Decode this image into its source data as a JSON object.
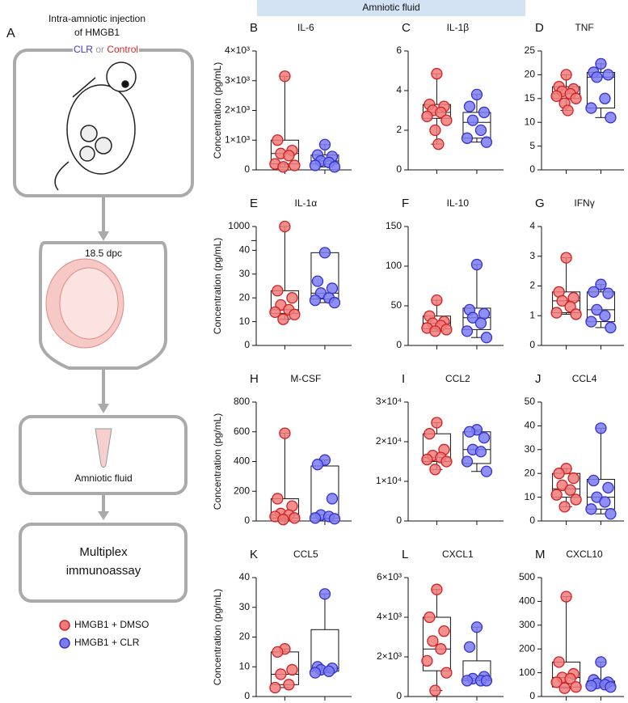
{
  "header": {
    "title": "Amniotic fluid"
  },
  "diagram": {
    "panel": "A",
    "line1": "Intra-amniotic injection",
    "line2": "of HMGB1",
    "clr": "CLR",
    "or": "or",
    "control": "Control",
    "stage": "18.5 dpc",
    "sample": "Amniotic fluid",
    "assay1": "Multiplex",
    "assay2": "immunoassay"
  },
  "legend": {
    "items": [
      {
        "name": "HMGB1 + DMSO",
        "color": "#f27b7b"
      },
      {
        "name": "HMGB1 + CLR",
        "color": "#7c7cf2"
      }
    ]
  },
  "chart_data": [
    {
      "type": "box",
      "panel": "B",
      "title": "IL-6",
      "ylabel": "Concentration (pg/mL)",
      "ylim": [
        0,
        4000
      ],
      "yticks": [
        0,
        {
          "value": 1000,
          "label": "1×10³"
        },
        {
          "value": 2000,
          "label": "2×10³"
        },
        {
          "value": 3000,
          "label": "3×10³"
        },
        {
          "value": 4000,
          "label": "4×10³"
        }
      ],
      "series": [
        {
          "color": "#f27b7b",
          "values": [
            3150,
            1000,
            650,
            550,
            480,
            200,
            150,
            100
          ],
          "box": [
            100,
            200,
            550,
            1000,
            3150
          ]
        },
        {
          "color": "#7c7cf2",
          "values": [
            850,
            500,
            450,
            300,
            250,
            150,
            100
          ],
          "box": [
            100,
            200,
            300,
            500,
            850
          ]
        }
      ]
    },
    {
      "type": "box",
      "panel": "C",
      "title": "IL-1β",
      "ylim": [
        0,
        6
      ],
      "yticks": [
        0,
        2,
        4,
        6
      ],
      "series": [
        {
          "color": "#f27b7b",
          "values": [
            4.85,
            3.3,
            3.2,
            3.0,
            2.9,
            2.7,
            2.5,
            2.0,
            1.3
          ],
          "box": [
            1.3,
            2.6,
            2.9,
            3.3,
            4.85
          ]
        },
        {
          "color": "#7c7cf2",
          "values": [
            3.8,
            3.2,
            2.9,
            2.5,
            2.0,
            1.6,
            1.4
          ],
          "box": [
            1.4,
            1.6,
            2.4,
            2.9,
            3.8
          ]
        }
      ]
    },
    {
      "type": "box",
      "panel": "D",
      "title": "TNF",
      "ylim": [
        0,
        25
      ],
      "yticks": [
        0,
        5,
        10,
        15,
        20,
        25
      ],
      "series": [
        {
          "color": "#f27b7b",
          "values": [
            20,
            17.5,
            17,
            16.5,
            16,
            15.5,
            15,
            14,
            12.5
          ],
          "box": [
            12.5,
            15,
            16,
            17.5,
            20
          ]
        },
        {
          "color": "#7c7cf2",
          "values": [
            22.3,
            20.5,
            20,
            19.5,
            15,
            13,
            11
          ],
          "box": [
            11,
            13,
            19.5,
            20.5,
            22.3
          ]
        }
      ]
    },
    {
      "type": "box",
      "panel": "E",
      "title": "IL-1α",
      "ylabel": "Concentration (pg/mL)",
      "ylim": [
        0,
        1000
      ],
      "ybreak": 40,
      "yticks": [
        0,
        10,
        20,
        30,
        40,
        1000
      ],
      "series": [
        {
          "color": "#f27b7b",
          "values": [
            1000,
            23,
            20,
            17,
            15,
            14,
            13,
            11
          ],
          "box": [
            11,
            13.5,
            15,
            23,
            1000
          ]
        },
        {
          "color": "#7c7cf2",
          "values": [
            39,
            27,
            24,
            22,
            20,
            19,
            18
          ],
          "box": [
            18,
            19.5,
            22,
            39,
            39
          ]
        }
      ]
    },
    {
      "type": "box",
      "panel": "F",
      "title": "IL-10",
      "ylim": [
        0,
        150
      ],
      "yticks": [
        0,
        50,
        100,
        150
      ],
      "series": [
        {
          "color": "#f27b7b",
          "values": [
            57,
            37,
            30,
            28,
            25,
            22,
            20,
            18
          ],
          "box": [
            18,
            21,
            28,
            37,
            57
          ]
        },
        {
          "color": "#7c7cf2",
          "values": [
            102,
            45,
            40,
            35,
            28,
            18,
            10
          ],
          "box": [
            10,
            20,
            35,
            47,
            102
          ]
        }
      ]
    },
    {
      "type": "box",
      "panel": "G",
      "title": "IFNγ",
      "ylim": [
        0,
        4
      ],
      "yticks": [
        0,
        1,
        2,
        3,
        4
      ],
      "series": [
        {
          "color": "#f27b7b",
          "values": [
            2.95,
            1.8,
            1.6,
            1.5,
            1.3,
            1.1,
            1.05
          ],
          "box": [
            1.05,
            1.1,
            1.5,
            1.8,
            2.95
          ]
        },
        {
          "color": "#7c7cf2",
          "values": [
            2.05,
            1.8,
            1.75,
            1.2,
            1.0,
            0.8,
            0.6
          ],
          "box": [
            0.6,
            0.8,
            1.2,
            1.8,
            2.05
          ]
        }
      ]
    },
    {
      "type": "box",
      "panel": "H",
      "title": "M-CSF",
      "ylabel": "Concentration (pg/mL)",
      "ylim": [
        0,
        800
      ],
      "yticks": [
        0,
        200,
        400,
        600,
        800
      ],
      "series": [
        {
          "color": "#f27b7b",
          "values": [
            590,
            150,
            100,
            50,
            40,
            30,
            20,
            10
          ],
          "box": [
            10,
            20,
            40,
            150,
            590
          ]
        },
        {
          "color": "#7c7cf2",
          "values": [
            410,
            380,
            150,
            40,
            30,
            20,
            15
          ],
          "box": [
            15,
            20,
            40,
            370,
            410
          ]
        }
      ]
    },
    {
      "type": "box",
      "panel": "I",
      "title": "CCL2",
      "ylim": [
        0,
        30000
      ],
      "yticks": [
        0,
        {
          "value": 10000,
          "label": "1×10⁴"
        },
        {
          "value": 20000,
          "label": "2×10⁴"
        },
        {
          "value": 30000,
          "label": "3×10⁴"
        }
      ],
      "series": [
        {
          "color": "#f27b7b",
          "values": [
            24800,
            22000,
            18000,
            16500,
            16000,
            15500,
            15000,
            13000
          ],
          "box": [
            13000,
            15000,
            16000,
            22000,
            24800
          ]
        },
        {
          "color": "#7c7cf2",
          "values": [
            23000,
            22500,
            21000,
            18000,
            17500,
            15000,
            12500
          ],
          "box": [
            12500,
            14500,
            18000,
            22500,
            23000
          ]
        }
      ]
    },
    {
      "type": "box",
      "panel": "J",
      "title": "CCL4",
      "ylim": [
        0,
        50
      ],
      "yticks": [
        0,
        10,
        20,
        30,
        40,
        50
      ],
      "series": [
        {
          "color": "#f27b7b",
          "values": [
            22,
            20,
            18,
            15,
            13,
            11,
            9,
            6
          ],
          "box": [
            6,
            10,
            13.5,
            20,
            22
          ]
        },
        {
          "color": "#7c7cf2",
          "values": [
            39,
            17,
            14,
            10,
            8,
            5,
            3
          ],
          "box": [
            3,
            5,
            10,
            17.5,
            39
          ]
        }
      ]
    },
    {
      "type": "box",
      "panel": "K",
      "title": "CCL5",
      "ylabel": "Concentration (pg/mL)",
      "ylim": [
        0,
        40
      ],
      "yticks": [
        0,
        10,
        20,
        30,
        40
      ],
      "series": [
        {
          "color": "#f27b7b",
          "values": [
            16,
            15,
            9,
            7.5,
            4,
            3
          ],
          "box": [
            3,
            4,
            7.5,
            15,
            16
          ]
        },
        {
          "color": "#7c7cf2",
          "values": [
            34.5,
            10,
            9.5,
            9,
            8.5,
            8
          ],
          "box": [
            8,
            8.5,
            9.5,
            22.5,
            34.5
          ]
        }
      ]
    },
    {
      "type": "box",
      "panel": "L",
      "title": "CXCL1",
      "ylim": [
        0,
        6000
      ],
      "yticks": [
        0,
        {
          "value": 2000,
          "label": "2×10³"
        },
        {
          "value": 4000,
          "label": "4×10³"
        },
        {
          "value": 6000,
          "label": "6×10³"
        }
      ],
      "series": [
        {
          "color": "#f27b7b",
          "values": [
            5400,
            4000,
            3300,
            2800,
            2400,
            1800,
            1200,
            300
          ],
          "box": [
            300,
            1300,
            2400,
            4000,
            5400
          ]
        },
        {
          "color": "#7c7cf2",
          "values": [
            3500,
            2500,
            1000,
            900,
            800,
            800,
            800
          ],
          "box": [
            800,
            800,
            900,
            1800,
            3500
          ]
        }
      ]
    },
    {
      "type": "box",
      "panel": "M",
      "title": "CXCL10",
      "ylim": [
        0,
        500
      ],
      "yticks": [
        0,
        100,
        200,
        300,
        400,
        500
      ],
      "series": [
        {
          "color": "#f27b7b",
          "values": [
            420,
            145,
            95,
            80,
            75,
            60,
            40,
            35
          ],
          "box": [
            35,
            40,
            80,
            145,
            420
          ]
        },
        {
          "color": "#7c7cf2",
          "values": [
            145,
            70,
            60,
            55,
            50,
            45,
            40
          ],
          "box": [
            40,
            45,
            55,
            65,
            145
          ]
        }
      ]
    }
  ]
}
